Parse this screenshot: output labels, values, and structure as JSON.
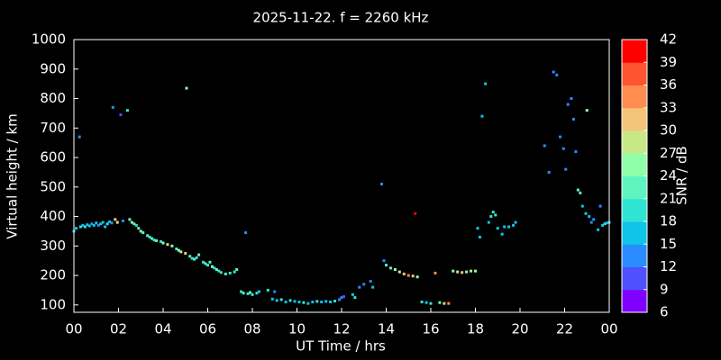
{
  "chart_data": {
    "type": "scatter",
    "title": "2025-11-22. f = 2260 kHz",
    "x_label": "UT Time / hrs",
    "y_label": "Virtual height / km",
    "colorbar_label": "SNR / dB",
    "xlim": [
      0,
      24
    ],
    "ylim": [
      75,
      1000
    ],
    "xticks": [
      {
        "value": 0,
        "label": "00"
      },
      {
        "value": 2,
        "label": "02"
      },
      {
        "value": 4,
        "label": "04"
      },
      {
        "value": 6,
        "label": "06"
      },
      {
        "value": 8,
        "label": "08"
      },
      10,
      12,
      14,
      16,
      18,
      20,
      22,
      {
        "value": 24,
        "label": "00"
      }
    ],
    "yticks": [
      100,
      200,
      300,
      400,
      500,
      600,
      700,
      800,
      900,
      1000
    ],
    "colorbar_lim": [
      6,
      42
    ],
    "colorbar_ticks": [
      6,
      9,
      12,
      15,
      18,
      21,
      24,
      27,
      30,
      33,
      36,
      39,
      42
    ],
    "colorbar_colors": [
      "#8000ff",
      "#5050ff",
      "#2a8cff",
      "#10c4e8",
      "#30e4d4",
      "#60f4c0",
      "#90ffa8",
      "#c8e888",
      "#f4c478",
      "#ff8c50",
      "#ff5430",
      "#ff0000"
    ],
    "x": [
      0.0,
      0.1,
      0.25,
      0.3,
      0.4,
      0.5,
      0.6,
      0.7,
      0.8,
      0.9,
      1.0,
      1.1,
      1.2,
      1.3,
      1.4,
      1.5,
      1.6,
      1.7,
      1.75,
      1.85,
      1.95,
      2.1,
      2.2,
      2.4,
      2.5,
      2.6,
      2.7,
      2.8,
      2.9,
      3.0,
      3.1,
      3.3,
      3.4,
      3.5,
      3.6,
      3.7,
      3.9,
      4.0,
      4.2,
      4.4,
      4.6,
      4.7,
      4.8,
      5.0,
      5.05,
      5.2,
      5.3,
      5.4,
      5.5,
      5.6,
      5.8,
      5.9,
      6.0,
      6.1,
      6.2,
      6.3,
      6.4,
      6.5,
      6.6,
      6.8,
      7.0,
      7.2,
      7.3,
      7.5,
      7.6,
      7.7,
      7.8,
      7.9,
      8.0,
      8.2,
      8.3,
      8.7,
      8.9,
      9.0,
      9.1,
      9.3,
      9.5,
      9.7,
      9.9,
      10.1,
      10.3,
      10.5,
      10.7,
      10.9,
      11.1,
      11.3,
      11.5,
      11.7,
      11.9,
      12.0,
      12.1,
      12.5,
      12.6,
      12.8,
      13.0,
      13.3,
      13.4,
      13.8,
      13.9,
      14.0,
      14.2,
      14.4,
      14.6,
      14.8,
      15.0,
      15.2,
      15.3,
      15.4,
      15.6,
      15.8,
      16.0,
      16.2,
      16.4,
      16.6,
      16.8,
      17.0,
      17.2,
      17.4,
      17.6,
      17.8,
      18.0,
      18.1,
      18.2,
      18.3,
      18.45,
      18.6,
      18.7,
      18.8,
      18.9,
      19.0,
      19.2,
      19.3,
      19.5,
      19.7,
      19.8,
      21.1,
      21.3,
      21.5,
      21.65,
      21.8,
      21.95,
      22.05,
      22.15,
      22.3,
      22.4,
      22.5,
      22.6,
      22.7,
      22.8,
      22.95,
      23.0,
      23.1,
      23.2,
      23.3,
      23.5,
      23.6,
      23.7,
      23.8,
      23.9,
      24.0
    ],
    "values": [
      350,
      360,
      670,
      365,
      370,
      365,
      372,
      368,
      375,
      370,
      378,
      370,
      375,
      380,
      365,
      375,
      382,
      378,
      770,
      390,
      380,
      745,
      385,
      760,
      390,
      380,
      375,
      370,
      360,
      350,
      345,
      335,
      330,
      325,
      320,
      318,
      315,
      310,
      305,
      300,
      290,
      285,
      280,
      275,
      835,
      265,
      258,
      255,
      260,
      270,
      245,
      240,
      235,
      245,
      230,
      225,
      220,
      215,
      210,
      205,
      208,
      212,
      220,
      145,
      140,
      345,
      138,
      142,
      135,
      140,
      145,
      150,
      120,
      145,
      115,
      118,
      110,
      115,
      112,
      110,
      108,
      105,
      110,
      112,
      110,
      112,
      110,
      113,
      118,
      125,
      128,
      135,
      125,
      160,
      170,
      180,
      160,
      510,
      250,
      235,
      225,
      220,
      212,
      205,
      200,
      198,
      410,
      195,
      110,
      108,
      105,
      208,
      108,
      105,
      105,
      215,
      212,
      210,
      212,
      215,
      215,
      360,
      330,
      740,
      850,
      380,
      400,
      415,
      405,
      360,
      340,
      365,
      365,
      370,
      380,
      640,
      550,
      890,
      880,
      670,
      630,
      560,
      780,
      800,
      730,
      620,
      490,
      480,
      435,
      410,
      760,
      400,
      380,
      390,
      355,
      435,
      370,
      375,
      378,
      380
    ],
    "snr": [
      15,
      15,
      12,
      18,
      15,
      18,
      15,
      15,
      12,
      15,
      15,
      12,
      15,
      15,
      15,
      18,
      15,
      12,
      12,
      30,
      27,
      9,
      12,
      18,
      21,
      24,
      21,
      18,
      21,
      24,
      21,
      21,
      18,
      21,
      18,
      21,
      18,
      24,
      27,
      24,
      21,
      24,
      27,
      30,
      24,
      21,
      18,
      21,
      18,
      21,
      18,
      21,
      18,
      21,
      24,
      18,
      21,
      18,
      18,
      21,
      18,
      18,
      21,
      18,
      21,
      12,
      18,
      21,
      18,
      18,
      15,
      18,
      15,
      12,
      15,
      18,
      15,
      18,
      15,
      15,
      18,
      15,
      15,
      18,
      15,
      15,
      15,
      18,
      12,
      12,
      9,
      15,
      18,
      12,
      12,
      12,
      15,
      12,
      12,
      21,
      21,
      24,
      27,
      30,
      33,
      30,
      42,
      24,
      18,
      15,
      18,
      33,
      21,
      30,
      33,
      24,
      27,
      30,
      24,
      27,
      24,
      15,
      15,
      15,
      15,
      15,
      18,
      18,
      18,
      15,
      15,
      15,
      15,
      15,
      15,
      12,
      12,
      12,
      12,
      12,
      12,
      12,
      12,
      12,
      12,
      12,
      21,
      21,
      15,
      15,
      24,
      15,
      12,
      12,
      15,
      12,
      15,
      18,
      15,
      15
    ]
  }
}
